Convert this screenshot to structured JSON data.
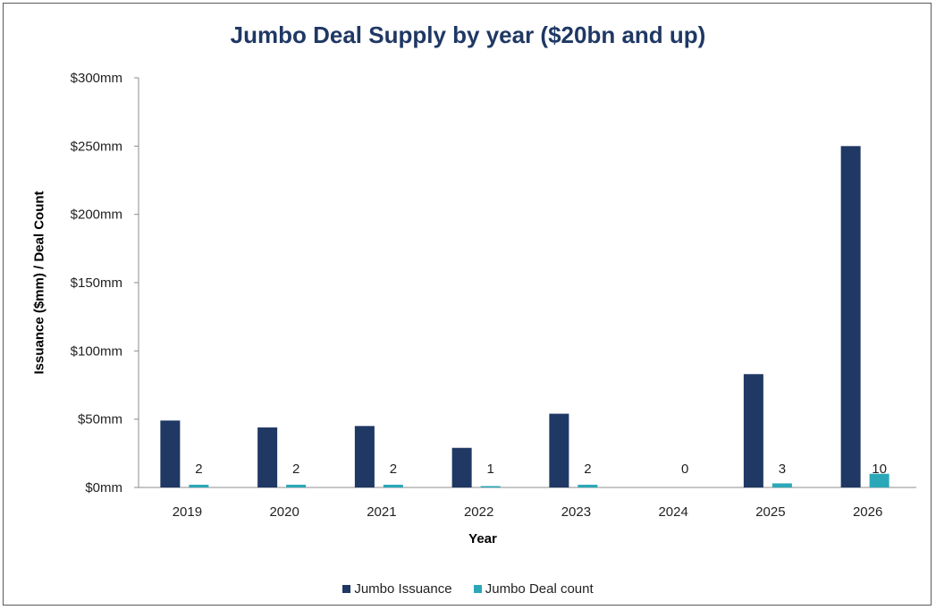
{
  "chart_data": {
    "type": "bar",
    "title": "Jumbo Deal Supply by year  ($20bn and up)",
    "xlabel": "Year",
    "ylabel": "Issuance ($mm) / Deal Count",
    "categories": [
      "2019",
      "2020",
      "2021",
      "2022",
      "2023",
      "2024",
      "2025",
      "2026"
    ],
    "series": [
      {
        "name": "Jumbo Issuance",
        "color": "#1f3864",
        "values": [
          49,
          44,
          45,
          29,
          54,
          0,
          83,
          250
        ]
      },
      {
        "name": "Jumbo Deal count",
        "color": "#2aa8b8",
        "values": [
          2,
          2,
          2,
          1,
          2,
          0,
          3,
          10
        ]
      }
    ],
    "data_labels": [
      "2",
      "2",
      "2",
      "1",
      "2",
      "0",
      "3",
      "10"
    ],
    "ylim": [
      0,
      300
    ],
    "yticks": [
      {
        "value": 0,
        "label": "$0mm"
      },
      {
        "value": 50,
        "label": "$50mm"
      },
      {
        "value": 100,
        "label": "$100mm"
      },
      {
        "value": 150,
        "label": "$150mm"
      },
      {
        "value": 200,
        "label": "$200mm"
      },
      {
        "value": 250,
        "label": "$250mm"
      },
      {
        "value": 300,
        "label": "$300mm"
      }
    ],
    "grid": false,
    "legend_position": "bottom"
  }
}
